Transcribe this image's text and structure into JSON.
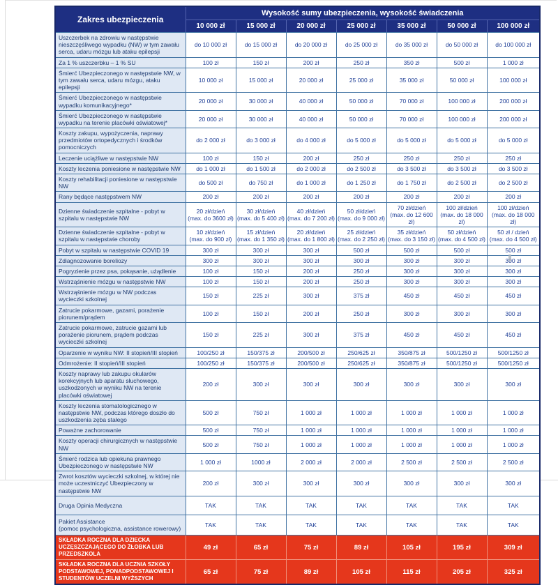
{
  "colors": {
    "header_navy": "#1e2f82",
    "grid_blue": "#4173a3",
    "label_bg": "#dfe8f4",
    "value_text": "#1f3f97",
    "premium_red": "#e5371c"
  },
  "header": {
    "zakres_label": "Zakres ubezpieczenia",
    "suma_label": "Wysokość sumy ubezpieczenia, wysokość świadczenia",
    "columns": [
      "10 000 zł",
      "15 000 zł",
      "20 000 zł",
      "25 000 zł",
      "35 000 zł",
      "50 000 zł",
      "100 000 zł"
    ]
  },
  "rows": [
    {
      "label": "Uszczerbek na zdrowiu w następstwie nieszczęśliwego wypadku (NW) w tym zawału serca, udaru mózgu lub ataku epilepsji",
      "values": [
        "do 10 000 zł",
        "do 15 000 zł",
        "do 20 000 zł",
        "do 25 000 zł",
        "do 35 000 zł",
        "do 50 000 zł",
        "do 100 000 zł"
      ]
    },
    {
      "label": "Za 1 % uszczerbku – 1 % SU",
      "values": [
        "100 zł",
        "150 zł",
        "200 zł",
        "250 zł",
        "350 zł",
        "500 zł",
        "1 000 zł"
      ]
    },
    {
      "label": "Śmierć Ubezpieczonego w następstwie NW, w tym zawału serca, udaru mózgu, ataku epilepsji",
      "values": [
        "10 000 zł",
        "15 000 zł",
        "20 000 zł",
        "25 000 zł",
        "35 000 zł",
        "50 000 zł",
        "100 000 zł"
      ]
    },
    {
      "label": "Śmierć Ubezpieczonego w następstwie wypadku komunikacyjnego*",
      "values": [
        "20 000 zł",
        "30 000 zł",
        "40 000 zł",
        "50 000 zł",
        "70 000 zł",
        "100 000 zł",
        "200 000 zł"
      ]
    },
    {
      "label": "Śmierć Ubezpieczonego w następstwie wypadku na terenie placówki oświatowej*",
      "values": [
        "20 000 zł",
        "30 000 zł",
        "40 000 zł",
        "50 000 zł",
        "70 000 zł",
        "100 000 zł",
        "200 000 zł"
      ]
    },
    {
      "label": "Koszty zakupu, wypożyczenia, naprawy przedmiotów ortopedycznych i środków pomocniczych",
      "values": [
        "do 2 000 zł",
        "do 3 000 zł",
        "do 4 000 zł",
        "do 5 000 zł",
        "do 5 000 zł",
        "do 5 000 zł",
        "do 5 000 zł"
      ]
    },
    {
      "label": "Leczenie uciążliwe w następstwie NW",
      "values": [
        "100 zł",
        "150 zł",
        "200 zł",
        "250 zł",
        "250 zł",
        "250 zł",
        "250 zł"
      ]
    },
    {
      "label": "Koszty leczenia poniesione w następstwie NW",
      "values": [
        "do 1 000 zł",
        "do 1 500 zł",
        "do 2 000 zł",
        "do 2 500 zł",
        "do 3 500 zł",
        "do 3 500 zł",
        "do 3 500 zł"
      ]
    },
    {
      "label": "Koszty rehabilitacji poniesione w następstwie NW",
      "values": [
        "do 500 zł",
        "do 750 zł",
        "do 1 000 zł",
        "do 1 250 zł",
        "do 1 750 zł",
        "do 2 500 zł",
        "do 2 500 zł"
      ]
    },
    {
      "label": "Rany będące następstwem NW",
      "values": [
        "200 zł",
        "200 zł",
        "200 zł",
        "200 zł",
        "200 zł",
        "200 zł",
        "200 zł"
      ]
    },
    {
      "label": "Dzienne świadczenie szpitalne - pobyt w szpitalu w następstwie NW",
      "values": [
        "20 zł/dzień\n(max. do 3600 zł)",
        "30 zł/dzień\n(max. do 5 400 zł)",
        "40 zł/dzień\n(max. do 7 200 zł)",
        "50 zł/dzień\n(max. do 9 000 zł)",
        "70 zł/dzień\n(max. do 12 600 zł)",
        "100 zł/dzień\n(max. do 18 000 zł)",
        "100 zł/dzień\n(max. do 18 000 zł)"
      ]
    },
    {
      "label": "Dzienne świadczenie szpitalne - pobyt w szpitalu w następstwie choroby",
      "values": [
        "10 zł/dzień\n(max. do 900 zł)",
        "15 zł/dzień\n(max. do 1 350 zł)",
        "20 zł/dzień\n(max. do 1 800 zł)",
        "25 zł/dzień\n(max. do 2 250 zł)",
        "35 zł/dzień\n(max. do 3 150 zł)",
        "50 zł/dzień\n(max. do 4 500 zł)",
        "50 zł / dzień\n(max. do 4 500 zł)"
      ]
    },
    {
      "label": "Pobyt w szpitalu w następstwie COVID 19",
      "values": [
        "300 zł",
        "300 zł",
        "300 zł",
        "500 zł",
        "500 zł",
        "500 zł",
        "500 zł"
      ]
    },
    {
      "label": "Zdiagnozowanie boreliozy",
      "values": [
        "300 zł",
        "300 zł",
        "300 zł",
        "300 zł",
        "300 zł",
        "300 zł",
        "300 zł"
      ]
    },
    {
      "label": "Pogryzienie przez psa, pokąsanie, użądlenie",
      "values": [
        "100 zł",
        "150 zł",
        "200 zł",
        "250 zł",
        "300 zł",
        "300 zł",
        "300 zł"
      ]
    },
    {
      "label": "Wstrząśnienie mózgu w następstwie NW",
      "values": [
        "100 zł",
        "150 zł",
        "200 zł",
        "250 zł",
        "300 zł",
        "300 zł",
        "300 zł"
      ]
    },
    {
      "label": "Wstrząśnienie mózgu w NW podczas wycieczki szkolnej",
      "values": [
        "150 zł",
        "225 zł",
        "300 zł",
        "375 zł",
        "450 zł",
        "450 zł",
        "450 zł"
      ]
    },
    {
      "label": "Zatrucie pokarmowe, gazami, porażenie piorunem/prądem",
      "values": [
        "100 zł",
        "150 zł",
        "200 zł",
        "250 zł",
        "300 zł",
        "300 zł",
        "300 zł"
      ]
    },
    {
      "label": "Zatrucie pokarmowe, zatrucie gazami lub porażenie piorunem, prądem podczas wycieczki szkolnej",
      "values": [
        "150 zł",
        "225 zł",
        "300 zł",
        "375 zł",
        "450 zł",
        "450 zł",
        "450 zł"
      ]
    },
    {
      "label": "Oparzenie w wyniku NW: II stopień/III stopień",
      "values": [
        "100/250 zł",
        "150/375 zł",
        "200/500 zł",
        "250/625 zł",
        "350/875 zł",
        "500/1250 zł",
        "500/1250 zł"
      ]
    },
    {
      "label": "Odmrożenie: II stopień/III stopień",
      "values": [
        "100/250 zł",
        "150/375 zł",
        "200/500 zł",
        "250/625 zł",
        "350/875 zł",
        "500/1250 zł",
        "500/1250 zł"
      ]
    },
    {
      "label": "Koszty naprawy lub zakupu okularów korekcyjnych lub aparatu słuchowego, uszkodzonych w wyniku NW na terenie placówki oświatowej",
      "values": [
        "200 zł",
        "300 zł",
        "300 zł",
        "300 zł",
        "300 zł",
        "300 zł",
        "300 zł"
      ]
    },
    {
      "label": "Koszty leczenia stomatologicznego w następstwie NW, podczas którego doszło do uszkodzenia zęba stałego",
      "values": [
        "500 zł",
        "750 zł",
        "1 000 zł",
        "1 000 zł",
        "1 000 zł",
        "1 000 zł",
        "1 000 zł"
      ]
    },
    {
      "label": "Poważne zachorowanie",
      "values": [
        "500 zł",
        "750 zł",
        "1 000 zł",
        "1 000 zł",
        "1 000 zł",
        "1 000 zł",
        "1 000 zł"
      ]
    },
    {
      "label": "Koszty operacji chirurgicznych w następstwie NW",
      "values": [
        "500 zł",
        "750 zł",
        "1 000 zł",
        "1 000 zł",
        "1 000 zł",
        "1 000 zł",
        "1 000 zł"
      ]
    },
    {
      "label": "Śmierć rodzica lub opiekuna prawnego Ubezpieczonego w następstwie NW",
      "values": [
        "1 000 zł",
        "1000 zł",
        "2 000 zł",
        "2 000 zł",
        "2 500 zł",
        "2 500 zł",
        "2 500 zł"
      ]
    },
    {
      "label": "Zwrot kosztów wycieczki szkolnej, w której nie może uczestniczyć Ubezpieczony w następstwie NW",
      "values": [
        "200 zł",
        "300 zł",
        "300 zł",
        "300 zł",
        "300 zł",
        "300 zł",
        "300 zł"
      ]
    },
    {
      "label": "Druga Opinia Medyczna",
      "values": [
        "TAK",
        "TAK",
        "TAK",
        "TAK",
        "TAK",
        "TAK",
        "TAK"
      ]
    },
    {
      "label": "Pakiet Assistance\n(pomoc psychologiczna, assistance rowerowy)",
      "values": [
        "TAK",
        "TAK",
        "TAK",
        "TAK",
        "TAK",
        "TAK",
        "TAK"
      ]
    }
  ],
  "premium_rows": [
    {
      "label": "SKŁADKA ROCZNA DLA DZIECKA UCZĘSZCZAJĄCEGO DO ŻŁOBKA LUB PRZEDSZKOLA",
      "values": [
        "49 zł",
        "65 zł",
        "75 zł",
        "89 zł",
        "105 zł",
        "195 zł",
        "309 zł"
      ]
    },
    {
      "label": "SKŁADKA ROCZNA DLA UCZNIA SZKOŁY PODSTAWOWEJ, PONADPODSTAWOWEJ I STUDENTÓW UCZELNI WYŻSZYCH",
      "values": [
        "65 zł",
        "75 zł",
        "89 zł",
        "105 zł",
        "115 zł",
        "205 zł",
        "325 zł"
      ]
    }
  ]
}
